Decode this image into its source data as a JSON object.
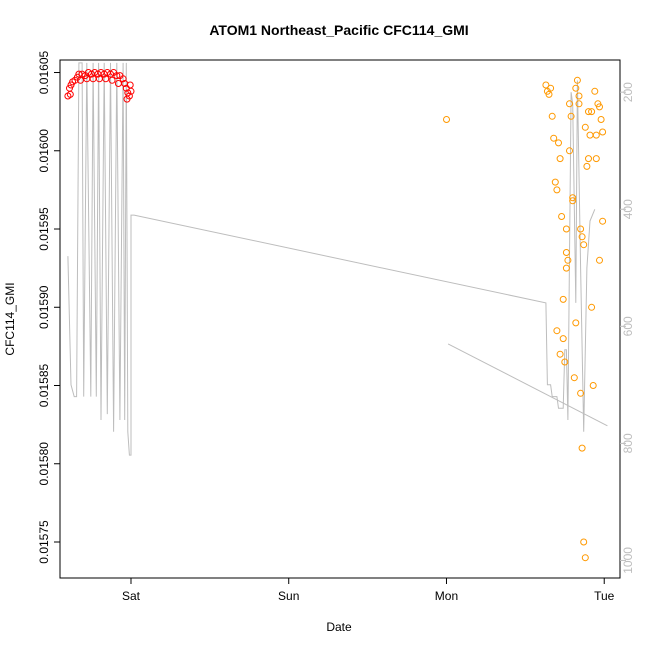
{
  "chart_data": {
    "type": "scatter",
    "title": "ATOM1 Northeast_Pacific CFC114_GMI",
    "xlabel": "Date",
    "ylabel": "CFC114_GMI",
    "x_ticks": [
      {
        "label": "Sat",
        "x": 1.0
      },
      {
        "label": "Sun",
        "x": 2.0
      },
      {
        "label": "Mon",
        "x": 3.0
      },
      {
        "label": "Tue",
        "x": 4.0
      }
    ],
    "y_ticks": [
      0.01575,
      0.0158,
      0.01585,
      0.0159,
      0.01595,
      0.016,
      0.01605
    ],
    "y_tick_labels": [
      "0.01575",
      "0.01580",
      "0.01585",
      "0.01590",
      "0.01595",
      "0.01600",
      "0.01605"
    ],
    "right_ticks": [
      200,
      400,
      600,
      800,
      1000
    ],
    "right_tick_labels": [
      "200",
      "400",
      "600",
      "800",
      "1000"
    ],
    "xlim": [
      0.55,
      4.1
    ],
    "ylim": [
      0.015727,
      0.016058
    ],
    "right_lim": [
      1030,
      145
    ],
    "colors": {
      "red": "#ff0000",
      "orange": "#ff9900",
      "pressure": "#bdbdbd",
      "axis": "#000000",
      "right_axis": "#bdbdbd"
    },
    "series": [
      {
        "color": "#ff0000",
        "points": [
          [
            0.6,
            0.016035
          ],
          [
            0.61,
            0.01604
          ],
          [
            0.62,
            0.016042
          ],
          [
            0.63,
            0.016044
          ],
          [
            0.645,
            0.016045
          ],
          [
            0.66,
            0.016047
          ],
          [
            0.67,
            0.016049
          ],
          [
            0.69,
            0.016049
          ],
          [
            0.71,
            0.016048
          ],
          [
            0.73,
            0.01605
          ],
          [
            0.75,
            0.016049
          ],
          [
            0.77,
            0.01605
          ],
          [
            0.79,
            0.016049
          ],
          [
            0.81,
            0.01605
          ],
          [
            0.83,
            0.016049
          ],
          [
            0.85,
            0.01605
          ],
          [
            0.87,
            0.016049
          ],
          [
            0.89,
            0.01605
          ],
          [
            0.91,
            0.016048
          ],
          [
            0.93,
            0.016048
          ],
          [
            0.95,
            0.016046
          ],
          [
            0.96,
            0.016043
          ],
          [
            0.97,
            0.01604
          ],
          [
            0.98,
            0.016037
          ],
          [
            0.99,
            0.016035
          ],
          [
            1.0,
            0.016038
          ],
          [
            0.615,
            0.016036
          ],
          [
            0.68,
            0.016045
          ],
          [
            0.72,
            0.016046
          ],
          [
            0.76,
            0.016046
          ],
          [
            0.8,
            0.016046
          ],
          [
            0.84,
            0.016046
          ],
          [
            0.88,
            0.016045
          ],
          [
            0.92,
            0.016043
          ],
          [
            0.975,
            0.016033
          ],
          [
            0.995,
            0.016042
          ]
        ]
      },
      {
        "color": "#ff9900",
        "points": [
          [
            3.0,
            0.01602
          ],
          [
            3.63,
            0.016042
          ],
          [
            3.64,
            0.016038
          ],
          [
            3.65,
            0.016036
          ],
          [
            3.66,
            0.01604
          ],
          [
            3.67,
            0.016022
          ],
          [
            3.68,
            0.016008
          ],
          [
            3.69,
            0.01598
          ],
          [
            3.7,
            0.015975
          ],
          [
            3.71,
            0.016005
          ],
          [
            3.72,
            0.015995
          ],
          [
            3.73,
            0.015958
          ],
          [
            3.74,
            0.01588
          ],
          [
            3.75,
            0.015865
          ],
          [
            3.76,
            0.01595
          ],
          [
            3.77,
            0.01593
          ],
          [
            3.78,
            0.01603
          ],
          [
            3.79,
            0.016022
          ],
          [
            3.8,
            0.01597
          ],
          [
            3.81,
            0.015855
          ],
          [
            3.82,
            0.01604
          ],
          [
            3.83,
            0.016045
          ],
          [
            3.84,
            0.016035
          ],
          [
            3.85,
            0.01595
          ],
          [
            3.86,
            0.01581
          ],
          [
            3.87,
            0.01575
          ],
          [
            3.88,
            0.01574
          ],
          [
            3.89,
            0.01599
          ],
          [
            3.9,
            0.016025
          ],
          [
            3.91,
            0.01601
          ],
          [
            3.92,
            0.0159
          ],
          [
            3.93,
            0.01585
          ],
          [
            3.94,
            0.016038
          ],
          [
            3.95,
            0.015995
          ],
          [
            3.96,
            0.01603
          ],
          [
            3.97,
            0.01593
          ],
          [
            3.98,
            0.01602
          ],
          [
            3.99,
            0.015955
          ],
          [
            3.76,
            0.015935
          ],
          [
            3.78,
            0.016
          ],
          [
            3.8,
            0.015968
          ],
          [
            3.82,
            0.01589
          ],
          [
            3.84,
            0.01603
          ],
          [
            3.86,
            0.015945
          ],
          [
            3.88,
            0.016015
          ],
          [
            3.9,
            0.015995
          ],
          [
            3.92,
            0.016025
          ],
          [
            3.95,
            0.01601
          ],
          [
            3.97,
            0.016028
          ],
          [
            3.99,
            0.016012
          ],
          [
            3.85,
            0.015845
          ],
          [
            3.87,
            0.01594
          ],
          [
            3.7,
            0.015885
          ],
          [
            3.72,
            0.01587
          ],
          [
            3.74,
            0.015905
          ],
          [
            3.76,
            0.015925
          ]
        ]
      }
    ],
    "pressure_line": {
      "color": "#bdbdbd",
      "points": [
        [
          0.6,
          480
        ],
        [
          0.62,
          700
        ],
        [
          0.64,
          720
        ],
        [
          0.655,
          720
        ],
        [
          0.67,
          150
        ],
        [
          0.69,
          150
        ],
        [
          0.7,
          720
        ],
        [
          0.72,
          150
        ],
        [
          0.745,
          720
        ],
        [
          0.76,
          150
        ],
        [
          0.78,
          720
        ],
        [
          0.795,
          150
        ],
        [
          0.81,
          760
        ],
        [
          0.83,
          150
        ],
        [
          0.85,
          750
        ],
        [
          0.87,
          150
        ],
        [
          0.89,
          780
        ],
        [
          0.91,
          150
        ],
        [
          0.93,
          760
        ],
        [
          0.95,
          150
        ],
        [
          0.96,
          760
        ],
        [
          0.97,
          150
        ],
        [
          0.98,
          780
        ],
        [
          0.99,
          820
        ],
        [
          1.0,
          820
        ],
        [
          1.0,
          410
        ],
        [
          1.02,
          410
        ],
        [
          3.63,
          560
        ],
        [
          3.64,
          700
        ],
        [
          3.66,
          700
        ],
        [
          3.67,
          720
        ],
        [
          3.7,
          720
        ],
        [
          3.71,
          740
        ],
        [
          3.74,
          740
        ],
        [
          3.75,
          640
        ],
        [
          3.76,
          640
        ],
        [
          3.77,
          760
        ],
        [
          3.79,
          200
        ],
        [
          3.8,
          220
        ],
        [
          3.82,
          560
        ],
        [
          3.83,
          180
        ],
        [
          3.85,
          500
        ],
        [
          3.87,
          780
        ],
        [
          3.89,
          500
        ],
        [
          3.91,
          420
        ],
        [
          3.94,
          400
        ]
      ]
    },
    "pressure_line2": {
      "color": "#bdbdbd",
      "points": [
        [
          3.01,
          630
        ],
        [
          4.02,
          770
        ]
      ]
    }
  }
}
